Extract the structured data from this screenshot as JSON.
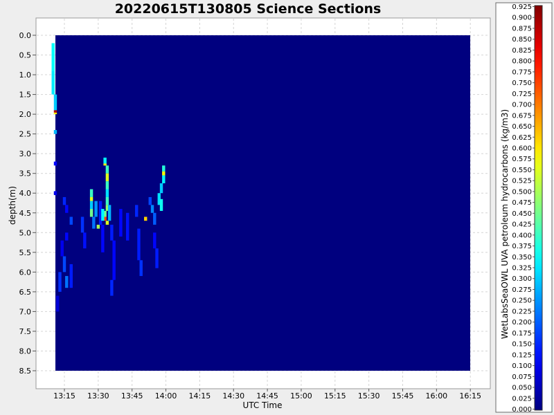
{
  "chart_data": {
    "type": "heatmap",
    "title": "20220615T130805 Science Sections",
    "xlabel": "UTC Time",
    "ylabel": "depth(m)",
    "x_ticks": [
      "13:15",
      "13:30",
      "13:45",
      "14:00",
      "14:15",
      "14:30",
      "14:45",
      "15:00",
      "15:15",
      "15:30",
      "15:45",
      "16:00",
      "16:15"
    ],
    "y_ticks": [
      "0.0",
      "0.5",
      "1.0",
      "1.5",
      "2.0",
      "2.5",
      "3.0",
      "3.5",
      "4.0",
      "4.5",
      "5.0",
      "5.5",
      "6.0",
      "6.5",
      "7.0",
      "7.5",
      "8.0",
      "8.5"
    ],
    "xlim": [
      "13:09",
      "16:15"
    ],
    "ylim": [
      0.0,
      8.5
    ],
    "y_inverted": true,
    "grid": true,
    "colorbar": {
      "label": "WetLabsSeaOWL UVA petroleum hydrocarbons (kg/m3)",
      "min": 0.0,
      "max": 0.925,
      "step": 0.025,
      "colormap": "jet",
      "ticks": [
        "0.000",
        "0.025",
        "0.050",
        "0.075",
        "0.100",
        "0.125",
        "0.150",
        "0.175",
        "0.200",
        "0.225",
        "0.250",
        "0.275",
        "0.300",
        "0.325",
        "0.350",
        "0.375",
        "0.400",
        "0.425",
        "0.450",
        "0.475",
        "0.500",
        "0.525",
        "0.550",
        "0.575",
        "0.600",
        "0.625",
        "0.650",
        "0.675",
        "0.700",
        "0.725",
        "0.750",
        "0.775",
        "0.800",
        "0.825",
        "0.850",
        "0.875",
        "0.900",
        "0.925"
      ]
    },
    "background_value": 0.0,
    "cells": [
      {
        "t": "13:10",
        "d0": 0.2,
        "d1": 0.9,
        "v": 0.35
      },
      {
        "t": "13:10",
        "d0": 0.9,
        "d1": 1.5,
        "v": 0.33
      },
      {
        "t": "13:11",
        "d0": 1.5,
        "d1": 1.9,
        "v": 0.3
      },
      {
        "t": "13:11",
        "d0": 1.9,
        "d1": 1.96,
        "v": 0.88
      },
      {
        "t": "13:11",
        "d0": 1.96,
        "d1": 2.0,
        "v": 0.58
      },
      {
        "t": "13:11",
        "d0": 2.4,
        "d1": 2.5,
        "v": 0.28
      },
      {
        "t": "13:11",
        "d0": 3.2,
        "d1": 3.3,
        "v": 0.12
      },
      {
        "t": "13:11",
        "d0": 3.95,
        "d1": 4.05,
        "v": 0.1
      },
      {
        "t": "13:15",
        "d0": 4.1,
        "d1": 4.3,
        "v": 0.15
      },
      {
        "t": "13:16",
        "d0": 4.3,
        "d1": 4.5,
        "v": 0.12
      },
      {
        "t": "13:18",
        "d0": 4.6,
        "d1": 4.8,
        "v": 0.18
      },
      {
        "t": "13:16",
        "d0": 5.0,
        "d1": 5.2,
        "v": 0.12
      },
      {
        "t": "13:14",
        "d0": 5.2,
        "d1": 5.6,
        "v": 0.1
      },
      {
        "t": "13:15",
        "d0": 5.6,
        "d1": 6.0,
        "v": 0.18
      },
      {
        "t": "13:13",
        "d0": 6.0,
        "d1": 6.5,
        "v": 0.16
      },
      {
        "t": "13:16",
        "d0": 6.1,
        "d1": 6.4,
        "v": 0.22
      },
      {
        "t": "13:12",
        "d0": 6.6,
        "d1": 7.0,
        "v": 0.08
      },
      {
        "t": "13:18",
        "d0": 5.8,
        "d1": 6.4,
        "v": 0.14
      },
      {
        "t": "13:23",
        "d0": 4.6,
        "d1": 5.0,
        "v": 0.16
      },
      {
        "t": "13:24",
        "d0": 5.0,
        "d1": 5.4,
        "v": 0.13
      },
      {
        "t": "13:27",
        "d0": 3.9,
        "d1": 4.1,
        "v": 0.4
      },
      {
        "t": "13:27",
        "d0": 4.1,
        "d1": 4.2,
        "v": 0.55
      },
      {
        "t": "13:27",
        "d0": 4.2,
        "d1": 4.4,
        "v": 0.3
      },
      {
        "t": "13:27",
        "d0": 4.4,
        "d1": 4.6,
        "v": 0.45
      },
      {
        "t": "13:28",
        "d0": 4.6,
        "d1": 4.9,
        "v": 0.22
      },
      {
        "t": "13:29",
        "d0": 4.2,
        "d1": 4.6,
        "v": 0.25
      },
      {
        "t": "13:30",
        "d0": 4.8,
        "d1": 4.9,
        "v": 0.5
      },
      {
        "t": "13:31",
        "d0": 4.2,
        "d1": 4.8,
        "v": 0.14
      },
      {
        "t": "13:32",
        "d0": 4.8,
        "d1": 5.5,
        "v": 0.12
      },
      {
        "t": "13:33",
        "d0": 3.1,
        "d1": 3.3,
        "v": 0.35
      },
      {
        "t": "13:33",
        "d0": 3.25,
        "d1": 3.3,
        "v": 0.6
      },
      {
        "t": "13:34",
        "d0": 3.3,
        "d1": 3.5,
        "v": 0.4
      },
      {
        "t": "13:34",
        "d0": 3.5,
        "d1": 3.7,
        "v": 0.55
      },
      {
        "t": "13:34",
        "d0": 3.7,
        "d1": 3.9,
        "v": 0.4
      },
      {
        "t": "13:34",
        "d0": 3.9,
        "d1": 4.1,
        "v": 0.32
      },
      {
        "t": "13:34",
        "d0": 4.1,
        "d1": 4.3,
        "v": 0.4
      },
      {
        "t": "13:34",
        "d0": 4.3,
        "d1": 4.45,
        "v": 0.48
      },
      {
        "t": "13:33",
        "d0": 4.45,
        "d1": 4.6,
        "v": 0.45
      },
      {
        "t": "13:33",
        "d0": 4.6,
        "d1": 4.7,
        "v": 0.75
      },
      {
        "t": "13:34",
        "d0": 4.7,
        "d1": 4.8,
        "v": 0.55
      },
      {
        "t": "13:35",
        "d0": 4.3,
        "d1": 4.7,
        "v": 0.28
      },
      {
        "t": "13:32",
        "d0": 4.4,
        "d1": 4.7,
        "v": 0.34
      },
      {
        "t": "13:36",
        "d0": 4.8,
        "d1": 5.2,
        "v": 0.14
      },
      {
        "t": "13:37",
        "d0": 5.2,
        "d1": 6.2,
        "v": 0.12
      },
      {
        "t": "13:36",
        "d0": 6.2,
        "d1": 6.6,
        "v": 0.15
      },
      {
        "t": "13:40",
        "d0": 4.4,
        "d1": 5.1,
        "v": 0.12
      },
      {
        "t": "13:43",
        "d0": 4.5,
        "d1": 5.2,
        "v": 0.13
      },
      {
        "t": "13:47",
        "d0": 4.3,
        "d1": 4.6,
        "v": 0.15
      },
      {
        "t": "13:48",
        "d0": 4.9,
        "d1": 5.7,
        "v": 0.14
      },
      {
        "t": "13:49",
        "d0": 5.7,
        "d1": 6.1,
        "v": 0.16
      },
      {
        "t": "13:51",
        "d0": 4.6,
        "d1": 4.7,
        "v": 0.62
      },
      {
        "t": "13:53",
        "d0": 4.1,
        "d1": 4.3,
        "v": 0.18
      },
      {
        "t": "13:54",
        "d0": 4.3,
        "d1": 4.5,
        "v": 0.24
      },
      {
        "t": "13:55",
        "d0": 4.5,
        "d1": 4.8,
        "v": 0.2
      },
      {
        "t": "13:55",
        "d0": 5.0,
        "d1": 5.4,
        "v": 0.12
      },
      {
        "t": "13:56",
        "d0": 5.4,
        "d1": 5.9,
        "v": 0.14
      },
      {
        "t": "13:57",
        "d0": 4.0,
        "d1": 4.3,
        "v": 0.32
      },
      {
        "t": "13:58",
        "d0": 3.75,
        "d1": 4.0,
        "v": 0.3
      },
      {
        "t": "13:59",
        "d0": 3.3,
        "d1": 3.45,
        "v": 0.38
      },
      {
        "t": "13:59",
        "d0": 3.45,
        "d1": 3.55,
        "v": 0.58
      },
      {
        "t": "13:59",
        "d0": 3.55,
        "d1": 3.75,
        "v": 0.34
      },
      {
        "t": "13:58",
        "d0": 4.15,
        "d1": 4.45,
        "v": 0.36
      }
    ]
  }
}
